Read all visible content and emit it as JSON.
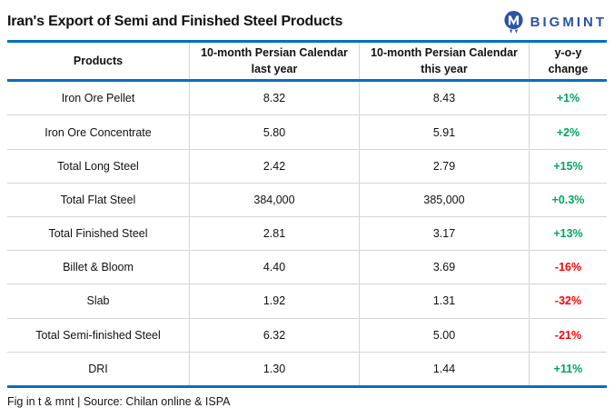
{
  "page": {
    "title": "Iran's Export of Semi and Finished Steel Products"
  },
  "logo": {
    "text": "BIGMINT",
    "icon": "bigmint-m-drip-icon"
  },
  "chart_data": {
    "type": "table",
    "title": "Iran's Export of Semi and Finished Steel Products",
    "columns": [
      {
        "label": "Products"
      },
      {
        "line1": "10-month Persian Calendar",
        "line2": "last year"
      },
      {
        "line1": "10-month Persian Calendar",
        "line2": "this year"
      },
      {
        "label": "y-o-y change"
      }
    ],
    "rows": [
      {
        "product": "Iron Ore Pellet",
        "last_year": "8.32",
        "this_year": "8.43",
        "change": "+1%",
        "trend": "up"
      },
      {
        "product": "Iron Ore Concentrate",
        "last_year": "5.80",
        "this_year": "5.91",
        "change": "+2%",
        "trend": "up"
      },
      {
        "product": "Total Long Steel",
        "last_year": "2.42",
        "this_year": "2.79",
        "change": "+15%",
        "trend": "up"
      },
      {
        "product": "Total Flat Steel",
        "last_year": "384,000",
        "this_year": "385,000",
        "change": "+0.3%",
        "trend": "up"
      },
      {
        "product": "Total Finished Steel",
        "last_year": "2.81",
        "this_year": "3.17",
        "change": "+13%",
        "trend": "up"
      },
      {
        "product": "Billet & Bloom",
        "last_year": "4.40",
        "this_year": "3.69",
        "change": "-16%",
        "trend": "down"
      },
      {
        "product": "Slab",
        "last_year": "1.92",
        "this_year": "1.31",
        "change": "-32%",
        "trend": "down"
      },
      {
        "product": "Total Semi-finished Steel",
        "last_year": "6.32",
        "this_year": "5.00",
        "change": "-21%",
        "trend": "down"
      },
      {
        "product": "DRI",
        "last_year": "1.30",
        "this_year": "1.44",
        "change": "+11%",
        "trend": "up"
      }
    ],
    "footer_note": "Fig in t & mnt | Source: Chilan online & ISPA"
  },
  "colors": {
    "accent_blue": "#0070C0",
    "logo_blue": "#2A54A4",
    "positive": "#00A65E",
    "negative": "#FB0404",
    "grid_line": "#D6D6D6"
  }
}
